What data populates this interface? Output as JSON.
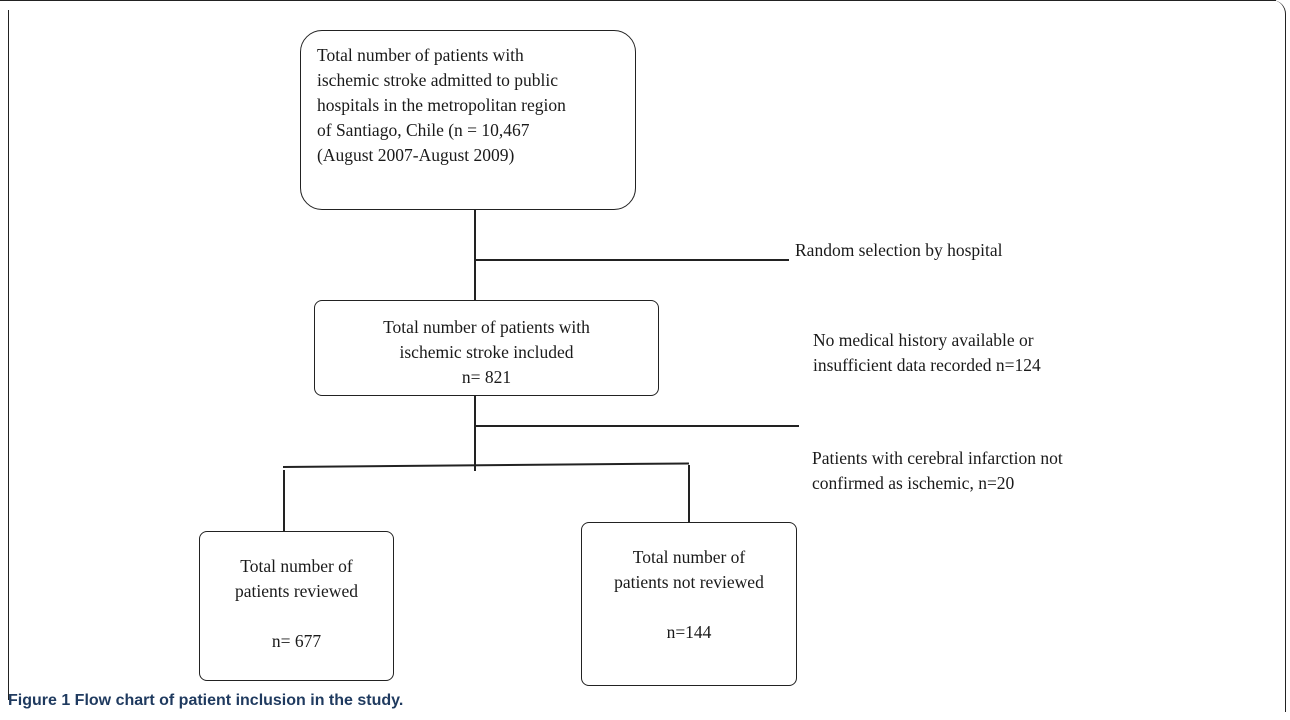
{
  "diagram": {
    "top_box": {
      "lines": [
        "Total number of patients with",
        "ischemic stroke admitted to public",
        "hospitals in the metropolitan region",
        "of Santiago, Chile (n = 10,467",
        "(August 2007-August 2009)"
      ]
    },
    "random_selection_note": "Random selection by hospital",
    "included_box": {
      "lines": [
        "Total number of patients with",
        "ischemic stroke included",
        "n= 821"
      ]
    },
    "exclusion_note_1": {
      "lines": [
        "No medical history available or",
        "insufficient data recorded n=124"
      ]
    },
    "exclusion_note_2": {
      "lines": [
        "Patients with cerebral infarction not",
        "confirmed as ischemic, n=20"
      ]
    },
    "reviewed_box": {
      "lines": [
        "Total number of",
        "patients reviewed",
        "",
        "n= 677"
      ]
    },
    "not_reviewed_box": {
      "lines": [
        "Total number of",
        "patients not reviewed",
        "",
        "n=144"
      ]
    }
  },
  "caption": "Figure 1 Flow chart of patient inclusion in the study."
}
